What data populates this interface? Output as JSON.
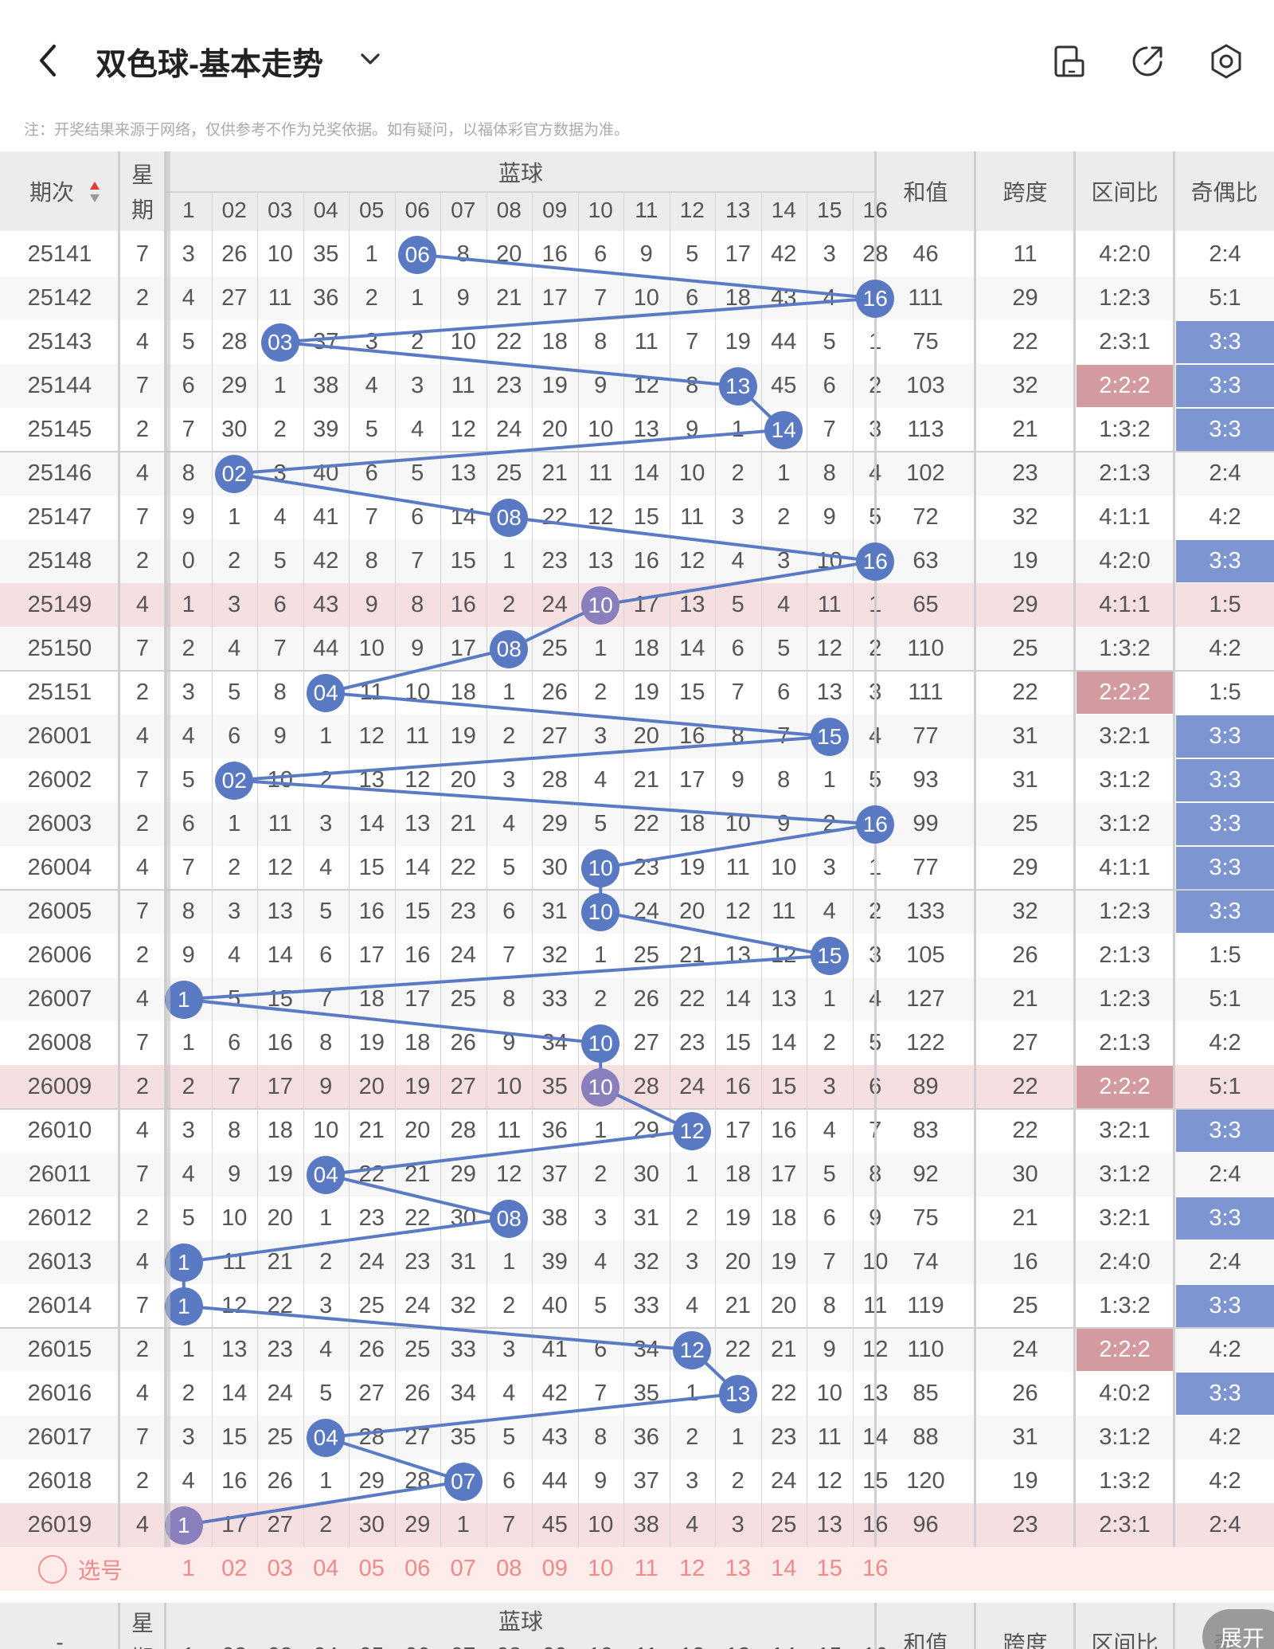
{
  "header": {
    "title": "双色球-基本走势",
    "icons": [
      "back-arrow-icon",
      "chevron-down-icon",
      "phone-screenshot-icon",
      "share-export-icon",
      "settings-icon"
    ]
  },
  "notice": "注：开奖结果来源于网络，仅供参考不作为兑奖依据。如有疑问，以福体彩官方数据为准。",
  "table": {
    "col_issue": "期次",
    "col_weekday_top": "星",
    "col_weekday_bottom": "期",
    "blue_group": "蓝球",
    "blue_headers": [
      "1",
      "02",
      "03",
      "04",
      "05",
      "06",
      "07",
      "08",
      "09",
      "10",
      "11",
      "12",
      "13",
      "14",
      "15",
      "16"
    ],
    "col_sum": "和值",
    "col_span": "跨度",
    "col_zone": "区间比",
    "col_odd": "奇偶比",
    "rows": [
      {
        "issue": "25141",
        "wd": "7",
        "cells": [
          "3",
          "26",
          "10",
          "35",
          "1",
          "06",
          "8",
          "20",
          "16",
          "6",
          "9",
          "5",
          "17",
          "42",
          "3",
          "28"
        ],
        "ball": 6,
        "sum": "46",
        "span": "11",
        "zone": "4:2:0",
        "odd": "2:4",
        "zhl": false,
        "ohl": false,
        "hl": false
      },
      {
        "issue": "25142",
        "wd": "2",
        "cells": [
          "4",
          "27",
          "11",
          "36",
          "2",
          "1",
          "9",
          "21",
          "17",
          "7",
          "10",
          "6",
          "18",
          "43",
          "4",
          "16"
        ],
        "ball": 16,
        "sum": "111",
        "span": "29",
        "zone": "1:2:3",
        "odd": "5:1",
        "zhl": false,
        "ohl": false,
        "hl": false
      },
      {
        "issue": "25143",
        "wd": "4",
        "cells": [
          "5",
          "28",
          "03",
          "37",
          "3",
          "2",
          "10",
          "22",
          "18",
          "8",
          "11",
          "7",
          "19",
          "44",
          "5",
          "1"
        ],
        "ball": 3,
        "sum": "75",
        "span": "22",
        "zone": "2:3:1",
        "odd": "3:3",
        "zhl": false,
        "ohl": true,
        "hl": false
      },
      {
        "issue": "25144",
        "wd": "7",
        "cells": [
          "6",
          "29",
          "1",
          "38",
          "4",
          "3",
          "11",
          "23",
          "19",
          "9",
          "12",
          "8",
          "13",
          "45",
          "6",
          "2"
        ],
        "ball": 13,
        "sum": "103",
        "span": "32",
        "zone": "2:2:2",
        "odd": "3:3",
        "zhl": true,
        "ohl": true,
        "hl": false
      },
      {
        "issue": "25145",
        "wd": "2",
        "cells": [
          "7",
          "30",
          "2",
          "39",
          "5",
          "4",
          "12",
          "24",
          "20",
          "10",
          "13",
          "9",
          "1",
          "14",
          "7",
          "3"
        ],
        "ball": 14,
        "sum": "113",
        "span": "21",
        "zone": "1:3:2",
        "odd": "3:3",
        "zhl": false,
        "ohl": true,
        "hl": false
      },
      {
        "issue": "25146",
        "wd": "4",
        "cells": [
          "8",
          "02",
          "3",
          "40",
          "6",
          "5",
          "13",
          "25",
          "21",
          "11",
          "14",
          "10",
          "2",
          "1",
          "8",
          "4"
        ],
        "ball": 2,
        "sum": "102",
        "span": "23",
        "zone": "2:1:3",
        "odd": "2:4",
        "zhl": false,
        "ohl": false,
        "hl": false
      },
      {
        "issue": "25147",
        "wd": "7",
        "cells": [
          "9",
          "1",
          "4",
          "41",
          "7",
          "6",
          "14",
          "08",
          "22",
          "12",
          "15",
          "11",
          "3",
          "2",
          "9",
          "5"
        ],
        "ball": 8,
        "sum": "72",
        "span": "32",
        "zone": "4:1:1",
        "odd": "4:2",
        "zhl": false,
        "ohl": false,
        "hl": false
      },
      {
        "issue": "25148",
        "wd": "2",
        "cells": [
          "0",
          "2",
          "5",
          "42",
          "8",
          "7",
          "15",
          "1",
          "23",
          "13",
          "16",
          "12",
          "4",
          "3",
          "10",
          "16"
        ],
        "ball": 16,
        "sum": "63",
        "span": "19",
        "zone": "4:2:0",
        "odd": "3:3",
        "zhl": false,
        "ohl": true,
        "hl": false
      },
      {
        "issue": "25149",
        "wd": "4",
        "cells": [
          "1",
          "3",
          "6",
          "43",
          "9",
          "8",
          "16",
          "2",
          "24",
          "10",
          "17",
          "13",
          "5",
          "4",
          "11",
          "1"
        ],
        "ball": 10,
        "sum": "65",
        "span": "29",
        "zone": "4:1:1",
        "odd": "1:5",
        "zhl": false,
        "ohl": false,
        "hl": true
      },
      {
        "issue": "25150",
        "wd": "7",
        "cells": [
          "2",
          "4",
          "7",
          "44",
          "10",
          "9",
          "17",
          "08",
          "25",
          "1",
          "18",
          "14",
          "6",
          "5",
          "12",
          "2"
        ],
        "ball": 8,
        "sum": "110",
        "span": "25",
        "zone": "1:3:2",
        "odd": "4:2",
        "zhl": false,
        "ohl": false,
        "hl": false
      },
      {
        "issue": "25151",
        "wd": "2",
        "cells": [
          "3",
          "5",
          "8",
          "04",
          "11",
          "10",
          "18",
          "1",
          "26",
          "2",
          "19",
          "15",
          "7",
          "6",
          "13",
          "3"
        ],
        "ball": 4,
        "sum": "111",
        "span": "22",
        "zone": "2:2:2",
        "odd": "1:5",
        "zhl": true,
        "ohl": false,
        "hl": false
      },
      {
        "issue": "26001",
        "wd": "4",
        "cells": [
          "4",
          "6",
          "9",
          "1",
          "12",
          "11",
          "19",
          "2",
          "27",
          "3",
          "20",
          "16",
          "8",
          "7",
          "15",
          "4"
        ],
        "ball": 15,
        "sum": "77",
        "span": "31",
        "zone": "3:2:1",
        "odd": "3:3",
        "zhl": false,
        "ohl": true,
        "hl": false
      },
      {
        "issue": "26002",
        "wd": "7",
        "cells": [
          "5",
          "02",
          "10",
          "2",
          "13",
          "12",
          "20",
          "3",
          "28",
          "4",
          "21",
          "17",
          "9",
          "8",
          "1",
          "5"
        ],
        "ball": 2,
        "sum": "93",
        "span": "31",
        "zone": "3:1:2",
        "odd": "3:3",
        "zhl": false,
        "ohl": true,
        "hl": false
      },
      {
        "issue": "26003",
        "wd": "2",
        "cells": [
          "6",
          "1",
          "11",
          "3",
          "14",
          "13",
          "21",
          "4",
          "29",
          "5",
          "22",
          "18",
          "10",
          "9",
          "2",
          "16"
        ],
        "ball": 16,
        "sum": "99",
        "span": "25",
        "zone": "3:1:2",
        "odd": "3:3",
        "zhl": false,
        "ohl": true,
        "hl": false
      },
      {
        "issue": "26004",
        "wd": "4",
        "cells": [
          "7",
          "2",
          "12",
          "4",
          "15",
          "14",
          "22",
          "5",
          "30",
          "10",
          "23",
          "19",
          "11",
          "10",
          "3",
          "1"
        ],
        "ball": 10,
        "sum": "77",
        "span": "29",
        "zone": "4:1:1",
        "odd": "3:3",
        "zhl": false,
        "ohl": true,
        "hl": false
      },
      {
        "issue": "26005",
        "wd": "7",
        "cells": [
          "8",
          "3",
          "13",
          "5",
          "16",
          "15",
          "23",
          "6",
          "31",
          "10",
          "24",
          "20",
          "12",
          "11",
          "4",
          "2"
        ],
        "ball": 10,
        "sum": "133",
        "span": "32",
        "zone": "1:2:3",
        "odd": "3:3",
        "zhl": false,
        "ohl": true,
        "hl": false
      },
      {
        "issue": "26006",
        "wd": "2",
        "cells": [
          "9",
          "4",
          "14",
          "6",
          "17",
          "16",
          "24",
          "7",
          "32",
          "1",
          "25",
          "21",
          "13",
          "12",
          "15",
          "3"
        ],
        "ball": 15,
        "sum": "105",
        "span": "26",
        "zone": "2:1:3",
        "odd": "1:5",
        "zhl": false,
        "ohl": false,
        "hl": false
      },
      {
        "issue": "26007",
        "wd": "4",
        "cells": [
          "1",
          "5",
          "15",
          "7",
          "18",
          "17",
          "25",
          "8",
          "33",
          "2",
          "26",
          "22",
          "14",
          "13",
          "1",
          "4"
        ],
        "ball": 1,
        "sum": "127",
        "span": "21",
        "zone": "1:2:3",
        "odd": "5:1",
        "zhl": false,
        "ohl": false,
        "hl": false
      },
      {
        "issue": "26008",
        "wd": "7",
        "cells": [
          "1",
          "6",
          "16",
          "8",
          "19",
          "18",
          "26",
          "9",
          "34",
          "10",
          "27",
          "23",
          "15",
          "14",
          "2",
          "5"
        ],
        "ball": 10,
        "sum": "122",
        "span": "27",
        "zone": "2:1:3",
        "odd": "4:2",
        "zhl": false,
        "ohl": false,
        "hl": false
      },
      {
        "issue": "26009",
        "wd": "2",
        "cells": [
          "2",
          "7",
          "17",
          "9",
          "20",
          "19",
          "27",
          "10",
          "35",
          "10",
          "28",
          "24",
          "16",
          "15",
          "3",
          "6"
        ],
        "ball": 10,
        "sum": "89",
        "span": "22",
        "zone": "2:2:2",
        "odd": "5:1",
        "zhl": true,
        "ohl": false,
        "hl": true
      },
      {
        "issue": "26010",
        "wd": "4",
        "cells": [
          "3",
          "8",
          "18",
          "10",
          "21",
          "20",
          "28",
          "11",
          "36",
          "1",
          "29",
          "12",
          "17",
          "16",
          "4",
          "7"
        ],
        "ball": 12,
        "sum": "83",
        "span": "22",
        "zone": "3:2:1",
        "odd": "3:3",
        "zhl": false,
        "ohl": true,
        "hl": false
      },
      {
        "issue": "26011",
        "wd": "7",
        "cells": [
          "4",
          "9",
          "19",
          "04",
          "22",
          "21",
          "29",
          "12",
          "37",
          "2",
          "30",
          "1",
          "18",
          "17",
          "5",
          "8"
        ],
        "ball": 4,
        "sum": "92",
        "span": "30",
        "zone": "3:1:2",
        "odd": "2:4",
        "zhl": false,
        "ohl": false,
        "hl": false
      },
      {
        "issue": "26012",
        "wd": "2",
        "cells": [
          "5",
          "10",
          "20",
          "1",
          "23",
          "22",
          "30",
          "08",
          "38",
          "3",
          "31",
          "2",
          "19",
          "18",
          "6",
          "9"
        ],
        "ball": 8,
        "sum": "75",
        "span": "21",
        "zone": "3:2:1",
        "odd": "3:3",
        "zhl": false,
        "ohl": true,
        "hl": false
      },
      {
        "issue": "26013",
        "wd": "4",
        "cells": [
          "1",
          "11",
          "21",
          "2",
          "24",
          "23",
          "31",
          "1",
          "39",
          "4",
          "32",
          "3",
          "20",
          "19",
          "7",
          "10"
        ],
        "ball": 1,
        "sum": "74",
        "span": "16",
        "zone": "2:4:0",
        "odd": "2:4",
        "zhl": false,
        "ohl": false,
        "hl": false
      },
      {
        "issue": "26014",
        "wd": "7",
        "cells": [
          "1",
          "12",
          "22",
          "3",
          "25",
          "24",
          "32",
          "2",
          "40",
          "5",
          "33",
          "4",
          "21",
          "20",
          "8",
          "11"
        ],
        "ball": 1,
        "sum": "119",
        "span": "25",
        "zone": "1:3:2",
        "odd": "3:3",
        "zhl": false,
        "ohl": true,
        "hl": false
      },
      {
        "issue": "26015",
        "wd": "2",
        "cells": [
          "1",
          "13",
          "23",
          "4",
          "26",
          "25",
          "33",
          "3",
          "41",
          "6",
          "34",
          "12",
          "22",
          "21",
          "9",
          "12"
        ],
        "ball": 12,
        "sum": "110",
        "span": "24",
        "zone": "2:2:2",
        "odd": "4:2",
        "zhl": true,
        "ohl": false,
        "hl": false
      },
      {
        "issue": "26016",
        "wd": "4",
        "cells": [
          "2",
          "14",
          "24",
          "5",
          "27",
          "26",
          "34",
          "4",
          "42",
          "7",
          "35",
          "1",
          "13",
          "22",
          "10",
          "13"
        ],
        "ball": 13,
        "sum": "85",
        "span": "26",
        "zone": "4:0:2",
        "odd": "3:3",
        "zhl": false,
        "ohl": true,
        "hl": false
      },
      {
        "issue": "26017",
        "wd": "7",
        "cells": [
          "3",
          "15",
          "25",
          "04",
          "28",
          "27",
          "35",
          "5",
          "43",
          "8",
          "36",
          "2",
          "1",
          "23",
          "11",
          "14"
        ],
        "ball": 4,
        "sum": "88",
        "span": "31",
        "zone": "3:1:2",
        "odd": "4:2",
        "zhl": false,
        "ohl": false,
        "hl": false
      },
      {
        "issue": "26018",
        "wd": "2",
        "cells": [
          "4",
          "16",
          "26",
          "1",
          "29",
          "28",
          "07",
          "6",
          "44",
          "9",
          "37",
          "3",
          "2",
          "24",
          "12",
          "15"
        ],
        "ball": 7,
        "sum": "120",
        "span": "19",
        "zone": "1:3:2",
        "odd": "4:2",
        "zhl": false,
        "ohl": false,
        "hl": false
      },
      {
        "issue": "26019",
        "wd": "4",
        "cells": [
          "1",
          "17",
          "27",
          "2",
          "30",
          "29",
          "1",
          "7",
          "45",
          "10",
          "38",
          "4",
          "3",
          "25",
          "13",
          "16"
        ],
        "ball": 1,
        "sum": "96",
        "span": "23",
        "zone": "2:3:1",
        "odd": "2:4",
        "zhl": false,
        "ohl": false,
        "hl": true
      }
    ],
    "select_label": "选号",
    "select_nums": [
      "1",
      "02",
      "03",
      "04",
      "05",
      "06",
      "07",
      "08",
      "09",
      "10",
      "11",
      "12",
      "13",
      "14",
      "15",
      "16"
    ],
    "footer": {
      "issue": "-",
      "wd_top": "星",
      "wd_bottom": "期",
      "blue": "蓝球",
      "sum": "和值",
      "span": "跨度",
      "zone": "区间比",
      "odd": "奇"
    },
    "expand_label": "展开"
  },
  "colors": {
    "blue_ball": "#5a79c3",
    "line": "#5b7ac4",
    "pink_row": "#f6dfe1",
    "pink_cell": "#d39a9f",
    "blue_cell": "#7d95d0"
  }
}
